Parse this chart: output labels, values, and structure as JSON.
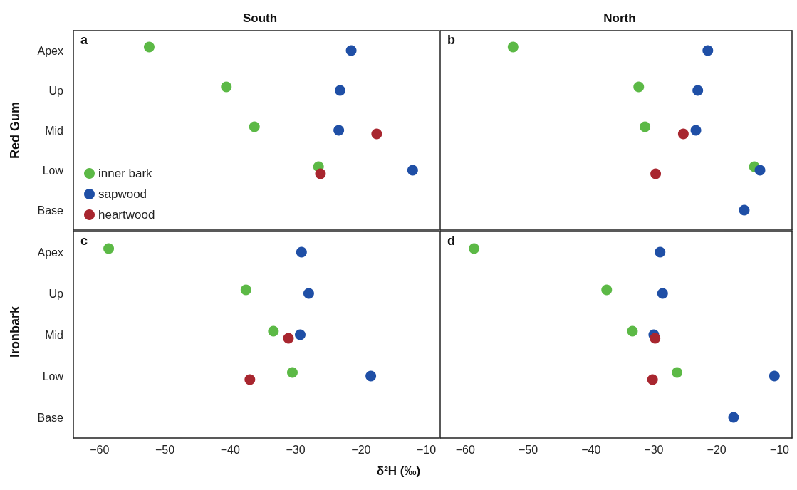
{
  "chart_data": [
    {
      "type": "scatter",
      "title": "South",
      "ylabel": "Red Gum",
      "annotations": [
        "a"
      ],
      "orientation": "horizontal",
      "categories": [
        "Apex",
        "Up",
        "Mid",
        "Low",
        "Base"
      ],
      "xlim": [
        -64,
        -8
      ],
      "xticks": [
        -60,
        -50,
        -40,
        -30,
        -20,
        -10
      ],
      "tick_labels": "y",
      "marker": "circle",
      "legend": "bottom left",
      "series": [
        {
          "name": "inner bark",
          "color": "#5cb946",
          "values": [
            -52.4,
            -40.6,
            -36.3,
            -26.5,
            null
          ]
        },
        {
          "name": "sapwood",
          "color": "#1f4fa6",
          "values": [
            -21.5,
            -23.2,
            -23.4,
            -12.1,
            null
          ]
        },
        {
          "name": "heartwood",
          "color": "#a8262f",
          "values": [
            null,
            null,
            -17.6,
            -26.2,
            null
          ]
        }
      ]
    },
    {
      "type": "scatter",
      "title": "North",
      "annotations": [
        "b"
      ],
      "orientation": "horizontal",
      "categories": [
        null,
        null,
        null,
        null,
        null
      ],
      "xlim": [
        -64,
        -8
      ],
      "xticks": [
        -60,
        -50,
        -40,
        -30,
        -20,
        -10
      ],
      "tick_labels": false,
      "marker": "circle",
      "series": [
        {
          "color": "#5cb946",
          "values": [
            -52.4,
            -32.4,
            -31.4,
            -14.0,
            null
          ]
        },
        {
          "color": "#1f4fa6",
          "values": [
            -21.4,
            -23.0,
            -23.3,
            -13.1,
            -15.6
          ]
        },
        {
          "color": "#a8262f",
          "values": [
            null,
            null,
            -25.3,
            -29.7,
            null
          ]
        }
      ]
    },
    {
      "type": "scatter",
      "ylabel": "Ironbark",
      "xlabel": "δ²H (‰)",
      "annotations": [
        "c"
      ],
      "orientation": "horizontal",
      "categories": [
        "Apex",
        "Up",
        "Mid",
        "Low",
        "Base"
      ],
      "xlim": [
        -64,
        -8
      ],
      "xticks": [
        -60,
        -50,
        -40,
        -30,
        -20,
        -10
      ],
      "marker": "circle",
      "series": [
        {
          "color": "#5cb946",
          "values": [
            -58.6,
            -37.6,
            -33.4,
            -30.5,
            null
          ]
        },
        {
          "color": "#1f4fa6",
          "values": [
            -29.1,
            -28.0,
            -29.3,
            -18.5,
            null
          ]
        },
        {
          "color": "#a8262f",
          "values": [
            null,
            null,
            -31.1,
            -37.0,
            null
          ]
        }
      ]
    },
    {
      "type": "scatter",
      "annotations": [
        "d"
      ],
      "orientation": "horizontal",
      "categories": [
        null,
        null,
        null,
        null,
        null
      ],
      "xlim": [
        -64,
        -8
      ],
      "xticks": [
        -60,
        -50,
        -40,
        -30,
        -20,
        -10
      ],
      "tick_labels": "x",
      "marker": "circle",
      "series": [
        {
          "color": "#5cb946",
          "values": [
            -58.6,
            -37.5,
            -33.4,
            -26.3,
            null
          ]
        },
        {
          "color": "#1f4fa6",
          "values": [
            -29.0,
            -28.6,
            -30.0,
            -10.8,
            -17.3
          ]
        },
        {
          "color": "#a8262f",
          "values": [
            null,
            null,
            -29.8,
            -30.2,
            null
          ]
        }
      ]
    }
  ]
}
